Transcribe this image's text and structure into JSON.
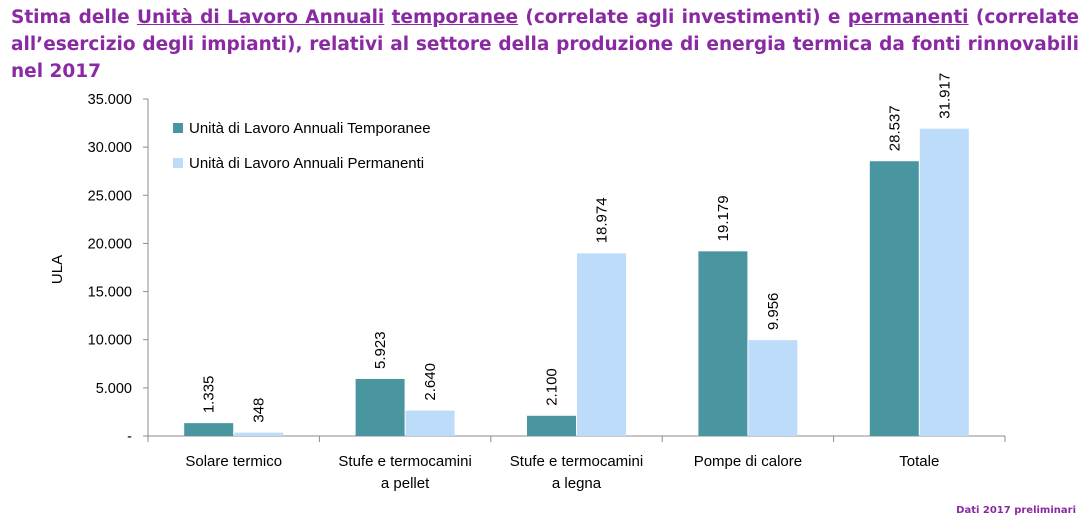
{
  "title": {
    "parts": [
      {
        "text": "Stima delle ",
        "underline": false
      },
      {
        "text": "Unità di Lavoro Annuali",
        "underline": true
      },
      {
        "text": " ",
        "underline": false
      },
      {
        "text": "temporanee",
        "underline": true
      },
      {
        "text": " (correlate agli investimenti) e ",
        "underline": false
      },
      {
        "text": "permanenti",
        "underline": true
      },
      {
        "text": " (correlate all’esercizio degli impianti), relativi al settore della produzione di energia termica da fonti rinnovabili nel 2017",
        "underline": false
      }
    ]
  },
  "footnote": "Dati 2017 preliminari",
  "colors": {
    "temporanee": "#4a96a0",
    "permanenti": "#bcdcfa",
    "title": "#8a2aa3",
    "axis": "#8c8c8c"
  },
  "chart_data": {
    "type": "bar",
    "ylabel": "ULA",
    "ylim": [
      0,
      35000
    ],
    "yticks": [
      0,
      5000,
      10000,
      15000,
      20000,
      25000,
      30000,
      35000
    ],
    "ytick_labels": [
      "-",
      "5.000",
      "10.000",
      "15.000",
      "20.000",
      "25.000",
      "30.000",
      "35.000"
    ],
    "categories": [
      [
        "Solare termico"
      ],
      [
        "Stufe e termocamini",
        "a pellet"
      ],
      [
        "Stufe e termocamini",
        "a legna"
      ],
      [
        "Pompe di calore"
      ],
      [
        "Totale"
      ]
    ],
    "series": [
      {
        "name": "Unità di Lavoro Annuali Temporanee",
        "color": "#4a96a0",
        "values": [
          1335,
          5923,
          2100,
          19179,
          28537
        ],
        "labels": [
          "1.335",
          "5.923",
          "2.100",
          "19.179",
          "28.537"
        ]
      },
      {
        "name": "Unità di Lavoro Annuali Permanenti",
        "color": "#bcdcfa",
        "values": [
          348,
          2640,
          18974,
          9956,
          31917
        ],
        "labels": [
          "348",
          "2.640",
          "18.974",
          "9.956",
          "31.917"
        ]
      }
    ],
    "legend": "top-left",
    "grid": false
  }
}
